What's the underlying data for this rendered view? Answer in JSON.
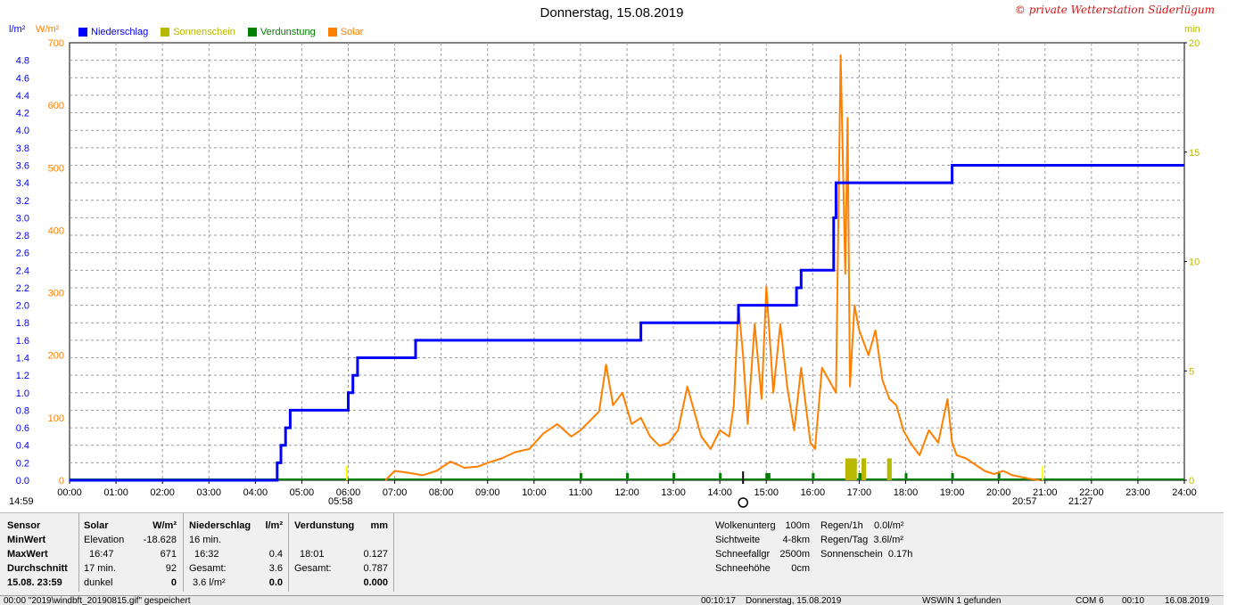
{
  "window": {
    "title": "Donnerstag, 15.08.2019",
    "copyright": "© private Wetterstation Süderlügum"
  },
  "units": {
    "left1": "l/m²",
    "left2": "W/m²",
    "right": "min"
  },
  "legend": [
    {
      "label": "Niederschlag",
      "color": "#0000ff"
    },
    {
      "label": "Sonnenschein",
      "color": "#b8b800"
    },
    {
      "label": "Verdunstung",
      "color": "#007f00"
    },
    {
      "label": "Solar",
      "color": "#ff8000"
    }
  ],
  "markers": {
    "sunrise_left": "14:59",
    "sunrise": "05:58",
    "sunset": "20:57",
    "sunset_right": "21:27"
  },
  "chart_data": {
    "type": "line",
    "title": "Donnerstag, 15.08.2019",
    "x_ticks": [
      "00:00",
      "01:00",
      "02:00",
      "03:00",
      "04:00",
      "05:00",
      "06:00",
      "07:00",
      "08:00",
      "09:00",
      "10:00",
      "11:00",
      "12:00",
      "13:00",
      "14:00",
      "15:00",
      "16:00",
      "17:00",
      "18:00",
      "19:00",
      "20:00",
      "21:00",
      "22:00",
      "23:00",
      "24:00"
    ],
    "xlim": [
      0,
      24
    ],
    "axes": {
      "precip": {
        "label": "l/m²",
        "ylim": [
          0,
          5.0
        ],
        "ticks": [
          "0.0",
          "0.2",
          "0.4",
          "0.6",
          "0.8",
          "1.0",
          "1.2",
          "1.4",
          "1.6",
          "1.8",
          "2.0",
          "2.2",
          "2.4",
          "2.6",
          "2.8",
          "3.0",
          "3.2",
          "3.4",
          "3.6",
          "3.8",
          "4.0",
          "4.2",
          "4.4",
          "4.6",
          "4.8"
        ],
        "tick_values": [
          0,
          0.2,
          0.4,
          0.6,
          0.8,
          1.0,
          1.2,
          1.4,
          1.6,
          1.8,
          2.0,
          2.2,
          2.4,
          2.6,
          2.8,
          3.0,
          3.2,
          3.4,
          3.6,
          3.8,
          4.0,
          4.2,
          4.4,
          4.6,
          4.8
        ]
      },
      "solar": {
        "label": "W/m²",
        "ylim": [
          0,
          700
        ],
        "ticks": [
          "0",
          "100",
          "200",
          "300",
          "400",
          "500",
          "600",
          "700"
        ],
        "tick_values": [
          0,
          100,
          200,
          300,
          400,
          500,
          600,
          700
        ]
      },
      "sun": {
        "label": "min",
        "ylim": [
          0,
          20
        ],
        "ticks": [
          "0",
          "5",
          "10",
          "15",
          "20"
        ],
        "tick_values": [
          0,
          5,
          10,
          15,
          20
        ]
      }
    },
    "series": [
      {
        "name": "Niederschlag",
        "axis": "precip",
        "color": "#0000ff",
        "x": [
          0,
          4.47,
          4.47,
          4.55,
          4.55,
          4.65,
          4.65,
          4.75,
          4.75,
          4.85,
          4.85,
          6.0,
          6.0,
          6.1,
          6.1,
          6.2,
          6.2,
          7.45,
          7.45,
          12.3,
          12.3,
          14.4,
          14.4,
          15.65,
          15.65,
          15.75,
          15.75,
          16.45,
          16.45,
          16.5,
          16.5,
          19.0,
          19.0,
          24.0
        ],
        "y": [
          0,
          0,
          0.2,
          0.2,
          0.4,
          0.4,
          0.6,
          0.6,
          0.8,
          0.8,
          0.8,
          0.8,
          1.0,
          1.0,
          1.2,
          1.2,
          1.4,
          1.4,
          1.6,
          1.6,
          1.8,
          1.8,
          2.0,
          2.0,
          2.2,
          2.2,
          2.4,
          2.4,
          3.0,
          3.0,
          3.4,
          3.4,
          3.6,
          3.6
        ]
      },
      {
        "name": "Solar",
        "axis": "solar",
        "color": "#ff8000",
        "x": [
          6.8,
          7.0,
          7.3,
          7.6,
          7.9,
          8.2,
          8.5,
          8.8,
          9.0,
          9.3,
          9.6,
          9.9,
          10.2,
          10.5,
          10.8,
          11.0,
          11.2,
          11.4,
          11.55,
          11.7,
          11.9,
          12.1,
          12.3,
          12.5,
          12.7,
          12.9,
          13.1,
          13.3,
          13.45,
          13.6,
          13.8,
          14.0,
          14.2,
          14.3,
          14.4,
          14.5,
          14.6,
          14.75,
          14.9,
          15.0,
          15.15,
          15.3,
          15.45,
          15.6,
          15.75,
          15.85,
          15.95,
          16.05,
          16.2,
          16.35,
          16.5,
          16.6,
          16.7,
          16.75,
          16.8,
          16.9,
          17.0,
          17.1,
          17.2,
          17.35,
          17.5,
          17.65,
          17.8,
          17.95,
          18.1,
          18.3,
          18.5,
          18.7,
          18.9,
          19.0,
          19.1,
          19.3,
          19.5,
          19.7,
          19.9,
          20.1,
          20.3,
          20.5,
          20.7,
          20.9
        ],
        "y": [
          0,
          15,
          12,
          8,
          15,
          30,
          20,
          22,
          28,
          35,
          45,
          50,
          75,
          90,
          70,
          80,
          95,
          110,
          185,
          120,
          140,
          90,
          100,
          70,
          55,
          60,
          80,
          150,
          110,
          70,
          50,
          80,
          70,
          120,
          280,
          200,
          90,
          250,
          130,
          310,
          140,
          250,
          150,
          80,
          180,
          120,
          60,
          50,
          180,
          160,
          140,
          680,
          330,
          580,
          150,
          280,
          240,
          220,
          200,
          240,
          160,
          130,
          120,
          80,
          60,
          40,
          80,
          60,
          130,
          60,
          40,
          35,
          25,
          15,
          10,
          15,
          8,
          5,
          2,
          0
        ]
      },
      {
        "name": "Sonnenschein",
        "axis": "sun",
        "color": "#b8b800",
        "bars": [
          {
            "x0": 16.7,
            "x1": 16.95,
            "y": 1.0
          },
          {
            "x0": 17.05,
            "x1": 17.15,
            "y": 1.0
          },
          {
            "x0": 17.6,
            "x1": 17.7,
            "y": 1.0
          }
        ]
      },
      {
        "name": "Verdunstung",
        "axis": "precip",
        "color": "#007f00",
        "ticks_at": [
          11.0,
          12.0,
          13.0,
          14.0,
          15.0,
          15.05,
          16.0,
          17.0,
          17.05,
          18.0,
          19.0,
          20.0
        ]
      }
    ]
  },
  "stats": {
    "headers": {
      "sensor": "Sensor",
      "solar": "Solar",
      "solar_unit": "W/m²",
      "precip": "Niederschlag",
      "precip_unit": "l/m²",
      "evap": "Verdunstung",
      "evap_unit": "mm"
    },
    "rows": [
      {
        "label": "MinWert",
        "s1": "Elevation",
        "s2": "-18.628",
        "p1": "16 min.",
        "p2": "",
        "e1": "",
        "e2": ""
      },
      {
        "label": "MaxWert",
        "s1": "16:47",
        "s2": "671",
        "p1": "16:32",
        "p2": "0.4",
        "e1": "18:01",
        "e2": "0.127"
      },
      {
        "label": "Durchschnitt",
        "s1": "17 min.",
        "s2": "92",
        "p1": "Gesamt:",
        "p2": "3.6",
        "e1": "Gesamt:",
        "e2": "0.787"
      },
      {
        "label": "15.08. 23:59",
        "s1": "dunkel",
        "s2": "0",
        "p1": "3.6 l/m²",
        "p2": "0.0",
        "e1": "",
        "e2": "0.000"
      }
    ],
    "right_table": [
      {
        "k": "Wolkenunterg",
        "v": "100m",
        "k2": "Regen/1h",
        "v2": "0.0l/m²"
      },
      {
        "k": "Sichtweite",
        "v": "4-8km",
        "k2": "Regen/Tag",
        "v2": "3.6l/m²"
      },
      {
        "k": "Schneefallgr",
        "v": "2500m",
        "k2": "Sonnenschein",
        "v2": "0.17h"
      },
      {
        "k": "Schneehöhe",
        "v": "0cm",
        "k2": "",
        "v2": ""
      }
    ]
  },
  "status_bar": {
    "left": "00:00   \"2019\\windbft_20190815.gif\"  gespeichert",
    "time": "00:10:17",
    "date": "Donnerstag, 15.08.2019",
    "found": "WSWIN 1 gefunden",
    "port": "COM 6",
    "clock": "00:10",
    "date2": "16.08.2019"
  }
}
